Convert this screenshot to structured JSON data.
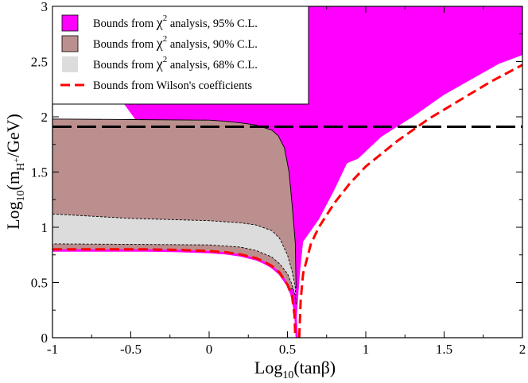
{
  "chart_data": {
    "type": "area",
    "title": "",
    "xlabel": "Log10(tanβ)",
    "ylabel": "Log10(mH+/GeV)",
    "xlabel_parts": {
      "pre": "Log",
      "sub": "10",
      "post": "(tanβ)"
    },
    "ylabel_parts": {
      "pre": "Log",
      "sub": "10",
      "mid": "(m",
      "sub2": "H",
      "sup": "+",
      "post": "/GeV)"
    },
    "xlim": [
      -1,
      2
    ],
    "ylim": [
      0,
      3
    ],
    "grid": false,
    "legend_position": "top-left",
    "xticks": [
      -1,
      -0.5,
      0,
      0.5,
      1,
      1.5,
      2
    ],
    "xtick_labels": [
      "-1",
      "-0.5",
      "0",
      "0.5",
      "1",
      "1.5",
      "2"
    ],
    "yticks": [
      0,
      0.5,
      1,
      1.5,
      2,
      2.5,
      3
    ],
    "ytick_labels": [
      "0",
      "0.5",
      "1",
      "1.5",
      "2",
      "2.5",
      "3"
    ],
    "legend": [
      {
        "label": "Bounds from χ² analysis, 95% C.L.",
        "pre": "Bounds from ",
        "chi": "χ",
        "sup": "2",
        "post": " analysis, 95% C.L.",
        "style": "box",
        "color": "#FF00FF"
      },
      {
        "label": "Bounds from χ² analysis, 90% C.L.",
        "pre": "Bounds from ",
        "chi": "χ",
        "sup": "2",
        "post": " analysis, 90% C.L.",
        "style": "box",
        "color": "#BC8F8F"
      },
      {
        "label": "Bounds from χ² analysis, 68% C.L.",
        "pre": "Bounds from ",
        "chi": "χ",
        "sup": "2",
        "post": " analysis, 68% C.L.",
        "style": "box",
        "color": "#DCDCDC"
      },
      {
        "label": "Bounds from Wilson's coefficients",
        "style": "dash",
        "color": "#FF0000"
      }
    ],
    "series": [
      {
        "name": "95% C.L. allowed lower boundary",
        "color": "#FF00FF",
        "style": "fill",
        "x": [
          -1,
          -0.8,
          -0.6,
          -0.4,
          -0.2,
          0,
          0.1,
          0.2,
          0.3,
          0.35,
          0.4,
          0.45,
          0.5,
          0.53,
          0.55,
          0.56
        ],
        "y": [
          0.79,
          0.79,
          0.79,
          0.79,
          0.785,
          0.775,
          0.765,
          0.745,
          0.71,
          0.68,
          0.64,
          0.58,
          0.48,
          0.38,
          0.22,
          0.0
        ]
      },
      {
        "name": "95% C.L. excluded upper region",
        "color": "#FF00FF",
        "style": "fill",
        "x": [
          0.55,
          0.56,
          0.58,
          0.6,
          0.7,
          0.8,
          0.88,
          0.95,
          1.1,
          1.3,
          1.5,
          1.7,
          1.85,
          2.0
        ],
        "y": [
          0.0,
          0.2,
          0.6,
          0.87,
          1.07,
          1.34,
          1.58,
          1.62,
          1.82,
          2.0,
          2.2,
          2.36,
          2.48,
          2.56
        ]
      },
      {
        "name": "90% C.L. upper boundary",
        "color": "#BC8F8F",
        "style": "fill",
        "x": [
          -1,
          -0.5,
          0,
          0.1,
          0.2,
          0.3,
          0.4,
          0.44,
          0.48,
          0.51,
          0.53,
          0.55,
          0.555
        ],
        "y": [
          1.98,
          1.975,
          1.97,
          1.96,
          1.945,
          1.925,
          1.88,
          1.83,
          1.72,
          1.5,
          1.2,
          0.85,
          0.45
        ]
      },
      {
        "name": "68% C.L. upper boundary",
        "color": "#DCDCDC",
        "style": "fill",
        "x": [
          -1,
          -0.5,
          0,
          0.2,
          0.3,
          0.4,
          0.45,
          0.5,
          0.53,
          0.55,
          0.555
        ],
        "y": [
          1.12,
          1.08,
          1.06,
          1.04,
          1.02,
          0.97,
          0.9,
          0.75,
          0.6,
          0.45,
          0.3
        ]
      },
      {
        "name": "68% C.L. lower boundary",
        "color": "#DCDCDC",
        "style": "fill",
        "x": [
          -1,
          -0.5,
          0,
          0.2,
          0.3,
          0.4,
          0.45,
          0.5,
          0.53,
          0.55
        ],
        "y": [
          0.85,
          0.845,
          0.84,
          0.82,
          0.79,
          0.73,
          0.67,
          0.58,
          0.48,
          0.38
        ]
      },
      {
        "name": "Wilson's coefficients bound (left branch)",
        "color": "#FF0000",
        "style": "dashed",
        "x": [
          -1,
          -0.8,
          -0.6,
          -0.4,
          -0.2,
          0,
          0.1,
          0.2,
          0.3,
          0.35,
          0.4,
          0.45,
          0.5,
          0.53,
          0.545,
          0.55
        ],
        "y": [
          0.8,
          0.8,
          0.8,
          0.8,
          0.795,
          0.785,
          0.775,
          0.755,
          0.72,
          0.69,
          0.65,
          0.59,
          0.48,
          0.37,
          0.2,
          0.0
        ]
      },
      {
        "name": "Wilson's coefficients bound (right branch)",
        "color": "#FF0000",
        "style": "dashed",
        "x": [
          0.575,
          0.585,
          0.6,
          0.65,
          0.7,
          0.8,
          0.9,
          1.0,
          1.2,
          1.4,
          1.6,
          1.8,
          2.0
        ],
        "y": [
          0.0,
          0.35,
          0.58,
          0.85,
          1.0,
          1.22,
          1.4,
          1.55,
          1.78,
          1.98,
          2.15,
          2.32,
          2.47
        ]
      },
      {
        "name": "Horizontal reference line",
        "color": "#000000",
        "style": "long-dashed",
        "x": [
          -1,
          2
        ],
        "y": [
          1.91,
          1.91
        ]
      }
    ]
  }
}
